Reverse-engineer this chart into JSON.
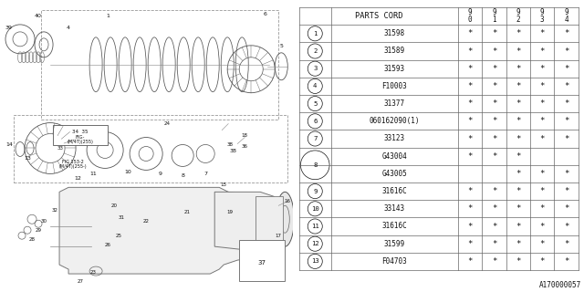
{
  "diagram_id": "A170000057",
  "bg_color": "#ffffff",
  "line_color": "#666666",
  "text_color": "#111111",
  "star": "*",
  "rows": [
    {
      "num": 1,
      "code": "31598",
      "cols": [
        true,
        true,
        true,
        true,
        true
      ],
      "sub": false
    },
    {
      "num": 2,
      "code": "31589",
      "cols": [
        true,
        true,
        true,
        true,
        true
      ],
      "sub": false
    },
    {
      "num": 3,
      "code": "31593",
      "cols": [
        true,
        true,
        true,
        true,
        true
      ],
      "sub": false
    },
    {
      "num": 4,
      "code": "F10003",
      "cols": [
        true,
        true,
        true,
        true,
        true
      ],
      "sub": false
    },
    {
      "num": 5,
      "code": "31377",
      "cols": [
        true,
        true,
        true,
        true,
        true
      ],
      "sub": false
    },
    {
      "num": 6,
      "code": "060162090(1)",
      "cols": [
        true,
        true,
        true,
        true,
        true
      ],
      "sub": false
    },
    {
      "num": 7,
      "code": "33123",
      "cols": [
        true,
        true,
        true,
        true,
        true
      ],
      "sub": false
    },
    {
      "num": 8,
      "code": "G43004",
      "cols": [
        true,
        true,
        true,
        false,
        false
      ],
      "sub": true
    },
    {
      "num": -1,
      "code": "G43005",
      "cols": [
        false,
        false,
        true,
        true,
        true
      ],
      "sub": true
    },
    {
      "num": 9,
      "code": "31616C",
      "cols": [
        true,
        true,
        true,
        true,
        true
      ],
      "sub": false
    },
    {
      "num": 10,
      "code": "33143",
      "cols": [
        true,
        true,
        true,
        true,
        true
      ],
      "sub": false
    },
    {
      "num": 11,
      "code": "31616C",
      "cols": [
        true,
        true,
        true,
        true,
        true
      ],
      "sub": false
    },
    {
      "num": 12,
      "code": "31599",
      "cols": [
        true,
        true,
        true,
        true,
        true
      ],
      "sub": false
    },
    {
      "num": 13,
      "code": "F04703",
      "cols": [
        true,
        true,
        true,
        true,
        true
      ],
      "sub": false
    }
  ],
  "col_years": [
    "9\n0",
    "9\n1",
    "9\n2",
    "9\n3",
    "9\n4"
  ]
}
